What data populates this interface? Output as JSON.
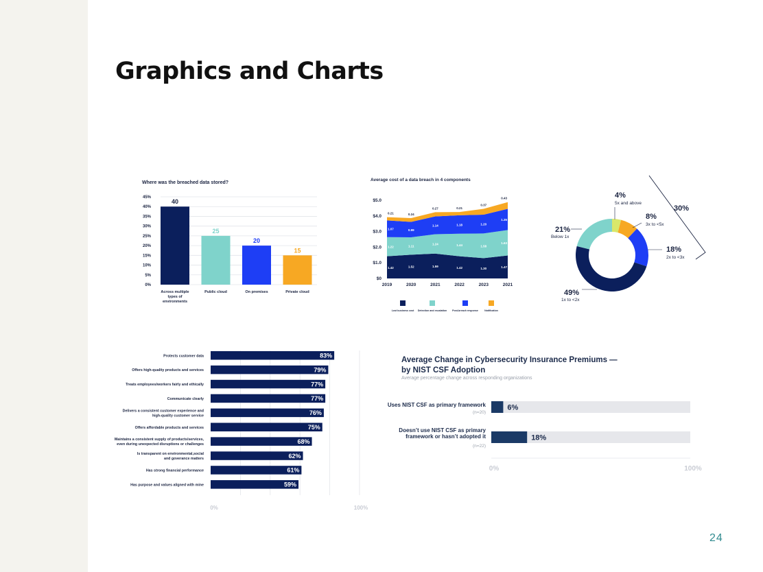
{
  "slide": {
    "title": "Graphics and Charts",
    "page_number": "24"
  },
  "colors": {
    "navy": "#0b1f5c",
    "teal": "#7fd3cb",
    "blue": "#1e3ef5",
    "orange": "#f7a823",
    "gray_bar": "#e6e7eb",
    "steel": "#1b3a66"
  },
  "chart_data": [
    {
      "type": "bar",
      "title": "Where was the breached data stored?",
      "categories": [
        "Across multiple types of environments",
        "Public cloud",
        "On premises",
        "Private cloud"
      ],
      "category_lines": [
        [
          "Across multiple",
          "types of",
          "environments"
        ],
        [
          "Public cloud"
        ],
        [
          "On premises"
        ],
        [
          "Private cloud"
        ]
      ],
      "values": [
        40,
        25,
        20,
        15
      ],
      "value_labels": [
        "40",
        "25",
        "20",
        "15"
      ],
      "colors": [
        "#0b1f5c",
        "#7fd3cb",
        "#1e3ef5",
        "#f7a823"
      ],
      "yticks": [
        "0%",
        "5%",
        "10%",
        "15%",
        "20%",
        "25%",
        "30%",
        "35%",
        "40%",
        "45%"
      ],
      "ylim": [
        0,
        45
      ],
      "grid": true
    },
    {
      "type": "area",
      "stacked": true,
      "title": "Average cost of a data breach in 4 components",
      "x": [
        "2019",
        "2020",
        "2021",
        "2022",
        "2023",
        "2021"
      ],
      "yticks": [
        "$0",
        "$1.0",
        "$2.0",
        "$3.0",
        "$4.0",
        "$5.0"
      ],
      "ylim": [
        0,
        5
      ],
      "series": [
        {
          "name": "Lost business cost",
          "color": "#0b1f5c",
          "values": [
            1.42,
            1.52,
            1.59,
            1.42,
            1.3,
            1.47
          ],
          "labels": [
            "1.42",
            "1.52",
            "1.59",
            "1.42",
            "1.30",
            "1.47"
          ]
        },
        {
          "name": "Detection and escalation",
          "color": "#7fd3cb",
          "values": [
            1.22,
            1.11,
            1.24,
            1.44,
            1.58,
            1.63
          ],
          "labels": [
            "1.22",
            "1.11",
            "1.24",
            "1.44",
            "1.58",
            "1.63"
          ]
        },
        {
          "name": "Post-breach response",
          "color": "#1e3ef5",
          "values": [
            1.07,
            0.99,
            1.14,
            1.18,
            1.2,
            1.35
          ],
          "labels": [
            "1.07",
            "0.99",
            "1.14",
            "1.18",
            "1.20",
            "1.35"
          ]
        },
        {
          "name": "Notification",
          "color": "#f7a823",
          "values": [
            0.21,
            0.24,
            0.27,
            0.21,
            0.37,
            0.43
          ],
          "labels": [
            "0.21",
            "0.24",
            "0.27",
            "0.21",
            "0.37",
            "0.43"
          ]
        }
      ],
      "legend": "bottom"
    },
    {
      "type": "pie",
      "donut": true,
      "slices": [
        {
          "label": "5x and above",
          "value": 4,
          "value_label": "4%",
          "color": "#d9e86a"
        },
        {
          "label": "3x to <5x",
          "value": 8,
          "value_label": "8%",
          "color": "#f7a823"
        },
        {
          "label": "2x to <3x",
          "value": 18,
          "value_label": "18%",
          "color": "#1e3ef5"
        },
        {
          "label": "1x to <2x",
          "value": 49,
          "value_label": "49%",
          "color": "#0b1f5c"
        },
        {
          "label": "Below 1x",
          "value": 21,
          "value_label": "21%",
          "color": "#7fd3cb"
        }
      ],
      "bracket_label": "30%"
    },
    {
      "type": "bar",
      "orientation": "horizontal",
      "categories": [
        "Protects customer data",
        "Offers high-quality products and services",
        "Treats employees/workers fairly and ethically",
        "Communicate clearly",
        "Delivers a consistent customer experience and high-quality customer service",
        "Offers affordable products and services",
        "Maintains a consistent supply of products/services, even during unexpected disruptions or challenges",
        "Is transparent on environmental,social and goverance matters",
        "Has strong financial performance",
        "Has purpose and values aligned with mine"
      ],
      "category_lines": [
        [
          "Protects customer data"
        ],
        [
          "Offers high-quality products and services"
        ],
        [
          "Treats employees/workers fairly and ethically"
        ],
        [
          "Communicate clearly"
        ],
        [
          "Delivers a consistent customer experience and",
          "high-quality customer service"
        ],
        [
          "Offers affordable products and services"
        ],
        [
          "Maintains a consistent supply of products/services,",
          "even during unexpected disruptions or challenges"
        ],
        [
          "Is transparent on environmental,social",
          "and goverance matters"
        ],
        [
          "Has strong financial performance"
        ],
        [
          "Has purpose and values aligned with mine"
        ]
      ],
      "values": [
        83,
        79,
        77,
        77,
        76,
        75,
        68,
        62,
        61,
        59
      ],
      "value_labels": [
        "83%",
        "79%",
        "77%",
        "77%",
        "76%",
        "75%",
        "68%",
        "62%",
        "61%",
        "59%"
      ],
      "xticks": [
        "0%",
        "100%"
      ],
      "xlim": [
        0,
        100
      ],
      "color": "#0b1f5c"
    },
    {
      "type": "bar",
      "orientation": "horizontal",
      "title": "Average Change in Cybersecurity Insurance Premiums —",
      "title_line2": "by NIST CSF Adoption",
      "subtitle": "Average percentage change across responding organizations",
      "categories": [
        "Uses NIST CSF as primary framework",
        "Doesn't use NIST CSF as primary framework or hasn't adopted it"
      ],
      "category_lines": [
        [
          "Uses NIST CSF as primary framework"
        ],
        [
          "Doesn’t use NIST CSF as primary",
          "framework or hasn’t adopted it"
        ]
      ],
      "n_labels": [
        "(n=20)",
        "(n=22)"
      ],
      "values": [
        6,
        18
      ],
      "value_labels": [
        "6%",
        "18%"
      ],
      "xticks": [
        "0%",
        "100%"
      ],
      "xlim": [
        0,
        100
      ],
      "color": "#1b3a66",
      "track_color": "#e6e7eb"
    }
  ]
}
